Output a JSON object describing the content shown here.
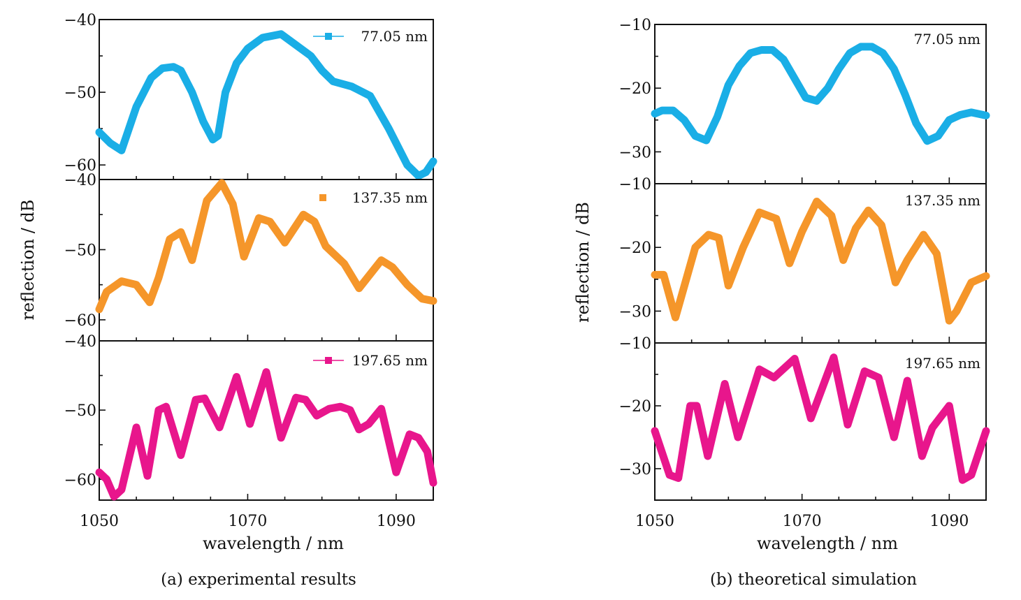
{
  "chart_data": [
    {
      "type": "line",
      "caption": "(a) experimental results",
      "xlabel": "wavelength / nm",
      "ylabel": "reflection / dB",
      "xlim": [
        1050,
        1095
      ],
      "x_ticks": [
        1050,
        1070,
        1090
      ],
      "x_tick_labels": [
        "1050",
        "1070",
        "1090"
      ],
      "grid": false,
      "legend_placement": "top-right",
      "panels": [
        {
          "name": "77.05 nm",
          "legend_label": "77.05 nm",
          "legend_marker": "line-square",
          "color": "#1AAEE6",
          "ylim": [
            -62,
            -40
          ],
          "y_ticks": [
            -40,
            -50,
            -60
          ],
          "y_tick_labels": [
            "−40",
            "−50",
            "−60"
          ],
          "x": [
            1050,
            1051.5,
            1053,
            1055,
            1057,
            1058.5,
            1060,
            1061,
            1062.5,
            1064,
            1065.3,
            1066,
            1067,
            1068.5,
            1070,
            1072,
            1074.5,
            1076.5,
            1078.5,
            1080,
            1081.5,
            1084,
            1086.5,
            1089,
            1091.5,
            1093,
            1094,
            1095
          ],
          "y": [
            -55.5,
            -57,
            -58,
            -52,
            -48,
            -46.7,
            -46.5,
            -47,
            -50,
            -54,
            -56.5,
            -56,
            -50,
            -46,
            -44,
            -42.5,
            -42,
            -43.5,
            -45,
            -47,
            -48.5,
            -49.2,
            -50.5,
            -55,
            -60,
            -61.5,
            -61,
            -59.5
          ]
        },
        {
          "name": "137.35 nm",
          "legend_label": "137.35 nm",
          "legend_marker": "square",
          "color": "#F5962A",
          "ylim": [
            -63,
            -40
          ],
          "y_ticks": [
            -40,
            -50,
            -60
          ],
          "y_tick_labels": [
            "−40",
            "−50",
            "−60"
          ],
          "x": [
            1050,
            1051,
            1053,
            1055,
            1056.8,
            1058,
            1059.5,
            1061,
            1062.5,
            1064.5,
            1066.5,
            1068,
            1069.5,
            1071.5,
            1073,
            1075,
            1077.5,
            1079,
            1080.5,
            1083,
            1085,
            1088,
            1089.5,
            1091.5,
            1093.5,
            1095
          ],
          "y": [
            -58.5,
            -56,
            -54.5,
            -55,
            -57.5,
            -54,
            -48.5,
            -47.5,
            -51.5,
            -43,
            -40.5,
            -43.5,
            -51,
            -45.5,
            -46,
            -49,
            -45,
            -46,
            -49.5,
            -52,
            -55.5,
            -51.5,
            -52.5,
            -55,
            -57,
            -57.3
          ]
        },
        {
          "name": "197.65 nm",
          "legend_label": "197.65 nm",
          "legend_marker": "line-square",
          "color": "#E8168C",
          "ylim": [
            -63,
            -40
          ],
          "y_ticks": [
            -40,
            -50,
            -60
          ],
          "y_tick_labels": [
            "−40",
            "−50",
            "−60"
          ],
          "x": [
            1050,
            1051,
            1052,
            1053,
            1055,
            1056.5,
            1058,
            1059,
            1061,
            1063,
            1064.2,
            1066.2,
            1068.5,
            1070.3,
            1072.5,
            1074.5,
            1076.5,
            1077.8,
            1079.3,
            1081,
            1082.5,
            1083.8,
            1085,
            1086.3,
            1088,
            1090,
            1091.8,
            1093,
            1094.2,
            1095
          ],
          "y": [
            -59,
            -60,
            -62.5,
            -61.5,
            -52.5,
            -59.5,
            -50,
            -49.5,
            -56.5,
            -48.5,
            -48.3,
            -52.5,
            -45.2,
            -52,
            -44.5,
            -54,
            -48.2,
            -48.5,
            -50.8,
            -49.8,
            -49.5,
            -50,
            -52.8,
            -52,
            -49.8,
            -59,
            -53.5,
            -54,
            -56,
            -60.5
          ]
        }
      ]
    },
    {
      "type": "line",
      "caption": "(b) theoretical simulation",
      "xlabel": "wavelength / nm",
      "ylabel": "reflection / dB",
      "xlim": [
        1050,
        1095
      ],
      "x_ticks": [
        1050,
        1070,
        1090
      ],
      "x_tick_labels": [
        "1050",
        "1070",
        "1090"
      ],
      "grid": false,
      "legend_placement": "top-right",
      "panels": [
        {
          "name": "77.05 nm",
          "legend_label": "77.05 nm",
          "legend_marker": "none",
          "color": "#1AAEE6",
          "ylim": [
            -35,
            -10
          ],
          "y_ticks": [
            -10,
            -20,
            -30
          ],
          "y_tick_labels": [
            "−10",
            "−20",
            "−30"
          ],
          "x": [
            1050,
            1051,
            1052.5,
            1054,
            1055.5,
            1057,
            1058.5,
            1060,
            1061.5,
            1063,
            1064.5,
            1066,
            1067.5,
            1069,
            1070.5,
            1072,
            1073.5,
            1075,
            1076.5,
            1078,
            1079.5,
            1081,
            1082.5,
            1084,
            1085.5,
            1087,
            1088.5,
            1090,
            1091.5,
            1093,
            1095
          ],
          "y": [
            -24,
            -23.5,
            -23.5,
            -25,
            -27.5,
            -28.2,
            -24.5,
            -19.5,
            -16.5,
            -14.5,
            -14,
            -14,
            -15.5,
            -18.5,
            -21.5,
            -22,
            -20,
            -17,
            -14.5,
            -13.5,
            -13.5,
            -14.5,
            -17,
            -21,
            -25.5,
            -28.3,
            -27.5,
            -25,
            -24.2,
            -23.8,
            -24.3
          ]
        },
        {
          "name": "137.35 nm",
          "legend_label": "137.35 nm",
          "legend_marker": "none",
          "color": "#F5962A",
          "ylim": [
            -35,
            -10
          ],
          "y_ticks": [
            -10,
            -20,
            -30
          ],
          "y_tick_labels": [
            "−10",
            "−20",
            "−30"
          ],
          "x": [
            1050,
            1051.2,
            1052.8,
            1055.5,
            1057.3,
            1058.7,
            1060,
            1062,
            1064.2,
            1066.5,
            1068.3,
            1070,
            1072,
            1074,
            1075.6,
            1077.3,
            1079,
            1080.8,
            1082.7,
            1084.3,
            1086.5,
            1088.3,
            1090,
            1091,
            1093,
            1095
          ],
          "y": [
            -24.3,
            -24.3,
            -31,
            -20,
            -18,
            -18.5,
            -26,
            -20,
            -14.5,
            -15.5,
            -22.5,
            -17.5,
            -12.8,
            -15,
            -22,
            -17,
            -14.2,
            -16.5,
            -25.5,
            -22,
            -18,
            -21,
            -31.5,
            -30,
            -25.5,
            -24.5
          ]
        },
        {
          "name": "197.65 nm",
          "legend_label": "197.65 nm",
          "legend_marker": "none",
          "color": "#E8168C",
          "ylim": [
            -35,
            -10
          ],
          "y_ticks": [
            -10,
            -20,
            -30
          ],
          "y_tick_labels": [
            "−10",
            "−20",
            "−30"
          ],
          "x": [
            1050,
            1052,
            1053.2,
            1054.8,
            1055.7,
            1057.2,
            1059.5,
            1061.3,
            1064.2,
            1066.2,
            1069,
            1071.2,
            1074.3,
            1076.2,
            1078.5,
            1080.4,
            1082.5,
            1084.3,
            1086.3,
            1087.7,
            1090,
            1091.8,
            1093,
            1095
          ],
          "y": [
            -24,
            -31,
            -31.5,
            -20,
            -20,
            -28,
            -16.5,
            -25,
            -14.2,
            -15.5,
            -12.5,
            -22,
            -12.3,
            -23,
            -14.5,
            -15.5,
            -25,
            -16,
            -28,
            -23.5,
            -20,
            -31.8,
            -31,
            -24
          ]
        }
      ]
    }
  ]
}
